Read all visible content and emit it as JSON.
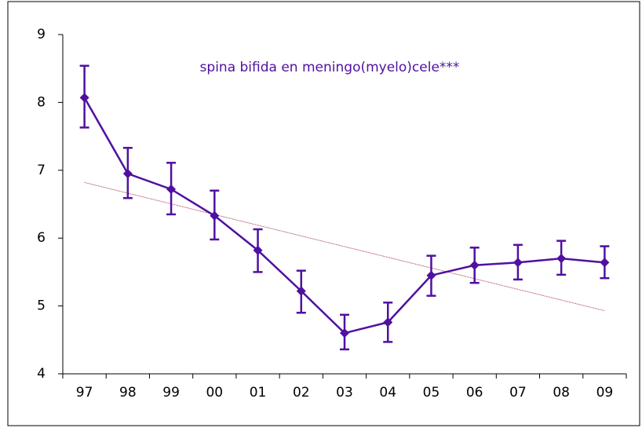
{
  "chart_data": {
    "type": "line",
    "title": "spina bifida en meningo(myelo)cele***",
    "categories": [
      "97",
      "98",
      "99",
      "00",
      "01",
      "02",
      "03",
      "04",
      "05",
      "06",
      "07",
      "08",
      "09"
    ],
    "series": [
      {
        "color": "#5010a0",
        "values": [
          8.07,
          6.95,
          6.72,
          6.33,
          5.82,
          5.22,
          4.6,
          4.76,
          5.45,
          5.6,
          5.64,
          5.7,
          5.64
        ],
        "lower": [
          7.63,
          6.59,
          6.35,
          5.98,
          5.5,
          4.9,
          4.36,
          4.47,
          5.15,
          5.34,
          5.39,
          5.46,
          5.41
        ],
        "upper": [
          8.54,
          7.33,
          7.11,
          6.7,
          6.13,
          5.52,
          4.87,
          5.05,
          5.74,
          5.86,
          5.9,
          5.96,
          5.88
        ]
      }
    ],
    "trendline": {
      "color": "#a03050",
      "values": [
        6.82,
        4.93
      ]
    },
    "ylim": [
      4,
      9
    ],
    "yticks": [
      4,
      5,
      6,
      7,
      8,
      9
    ]
  }
}
